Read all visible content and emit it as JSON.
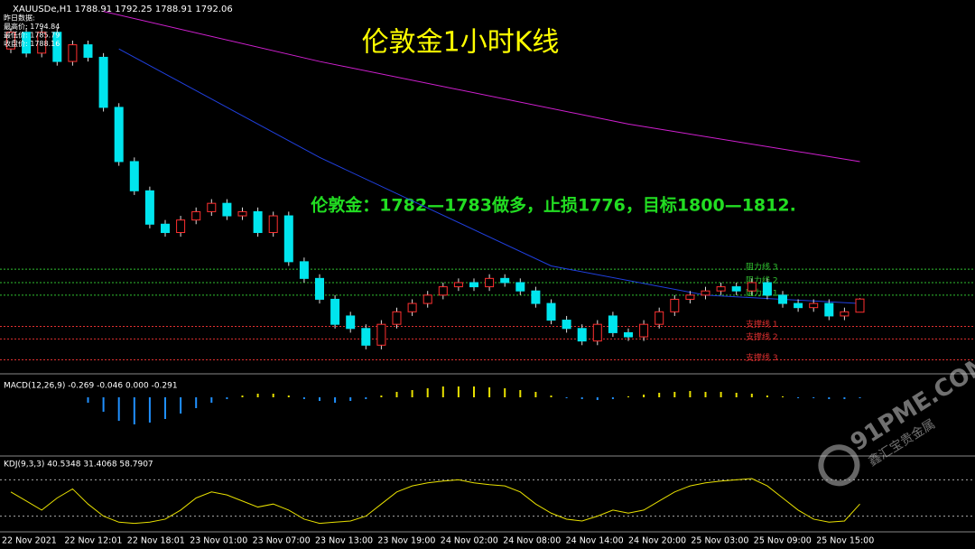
{
  "chart_data": [
    {
      "type": "candlestick",
      "header": "XAUUSDe,H1  1788.91 1792.25 1788.91 1792.06",
      "title": "伦敦金1小时K线",
      "annotation": "伦敦金：1782—1783做多，止损1776，目标1800—1812.",
      "info": [
        "昨日数据:",
        "最高价: 1794.84",
        "最低价: 1785.79",
        "收盘价: 1788.16"
      ],
      "ylim": [
        1775,
        1862
      ],
      "up_color": "#ff3030",
      "down_color": "#00e5ee",
      "open": [
        1852,
        1856,
        1851,
        1856,
        1849,
        1853,
        1850,
        1838,
        1825,
        1818,
        1810,
        1808,
        1811,
        1813,
        1815,
        1812,
        1813,
        1808,
        1812,
        1801,
        1797,
        1792,
        1788,
        1785,
        1781,
        1786,
        1789,
        1791,
        1793,
        1795,
        1796,
        1795,
        1797,
        1796,
        1794,
        1791,
        1787,
        1785,
        1782,
        1788,
        1784,
        1783,
        1786,
        1789,
        1792,
        1793,
        1794,
        1795,
        1794,
        1796,
        1793,
        1791,
        1790,
        1791,
        1788,
        1788.91
      ],
      "high": [
        1857,
        1857,
        1857,
        1857,
        1854,
        1854,
        1851,
        1839,
        1826,
        1819,
        1811,
        1812,
        1814,
        1816,
        1816,
        1814,
        1814,
        1813,
        1813,
        1802,
        1798,
        1793,
        1789,
        1786,
        1787,
        1790,
        1792,
        1794,
        1796,
        1797,
        1797,
        1798,
        1798,
        1797,
        1795,
        1792,
        1788,
        1786,
        1787,
        1789,
        1785,
        1787,
        1790,
        1793,
        1794,
        1795,
        1796,
        1796,
        1797,
        1797,
        1794,
        1792,
        1792,
        1792,
        1790,
        1792.25
      ],
      "low": [
        1851,
        1850,
        1850,
        1848,
        1848,
        1849,
        1837,
        1824,
        1817,
        1809,
        1807,
        1807,
        1810,
        1812,
        1811,
        1811,
        1807,
        1807,
        1800,
        1796,
        1791,
        1785,
        1784,
        1780,
        1780,
        1785,
        1788,
        1790,
        1792,
        1794,
        1794,
        1794,
        1795,
        1793,
        1790,
        1786,
        1784,
        1781,
        1781,
        1783,
        1782,
        1782,
        1785,
        1788,
        1791,
        1792,
        1793,
        1793,
        1793,
        1792,
        1790,
        1789,
        1789,
        1787,
        1787,
        1788.91
      ],
      "close": [
        1856,
        1851,
        1856,
        1849,
        1853,
        1850,
        1838,
        1825,
        1818,
        1810,
        1808,
        1811,
        1813,
        1815,
        1812,
        1813,
        1808,
        1812,
        1801,
        1797,
        1792,
        1786,
        1785,
        1781,
        1786,
        1789,
        1791,
        1793,
        1795,
        1796,
        1795,
        1797,
        1796,
        1794,
        1791,
        1787,
        1785,
        1782,
        1786,
        1784,
        1783,
        1786,
        1789,
        1792,
        1793,
        1794,
        1795,
        1794,
        1796,
        1793,
        1791,
        1790,
        1791,
        1788,
        1789,
        1792.06
      ],
      "lines": [
        {
          "color": "#d020d0",
          "x": [
            6,
            20,
            40,
            55
          ],
          "values": [
            1861,
            1849,
            1834,
            1825
          ]
        },
        {
          "color": "#2040e0",
          "x": [
            7,
            20,
            35,
            45,
            55
          ],
          "values": [
            1852,
            1826,
            1800,
            1793,
            1791
          ]
        }
      ],
      "levels": [
        {
          "label": "阻力线 3",
          "value": 1799.2,
          "color": "#30c030"
        },
        {
          "label": "阻力线 2",
          "value": 1796,
          "color": "#30c030"
        },
        {
          "label": "阻力线 1",
          "value": 1793,
          "color": "#30c030"
        },
        {
          "label": "支撑线 1",
          "value": 1785.5,
          "color": "#e03030"
        },
        {
          "label": "支撑线 2",
          "value": 1782.5,
          "color": "#e03030"
        },
        {
          "label": "支撑线 3",
          "value": 1777.5,
          "color": "#e03030"
        }
      ],
      "x_labels": [
        "22 Nov 2021",
        "22 Nov 12:01",
        "22 Nov 18:01",
        "23 Nov 01:00",
        "23 Nov 07:00",
        "23 Nov 13:00",
        "23 Nov 19:00",
        "24 Nov 02:00",
        "24 Nov 08:00",
        "24 Nov 14:00",
        "24 Nov 20:00",
        "25 Nov 03:00",
        "25 Nov 09:00",
        "25 Nov 15:00"
      ]
    },
    {
      "type": "bar",
      "title": "MACD(12,26,9) -0.269 -0.046 0.000 -0.291",
      "ylim": [
        -3,
        1
      ],
      "up_color": "#e8e000",
      "down_color": "#2090ff",
      "values": [
        0,
        0,
        0,
        0,
        0,
        -0.3,
        -0.8,
        -1.3,
        -1.5,
        -1.4,
        -1.2,
        -0.9,
        -0.6,
        -0.3,
        -0.1,
        0.1,
        0.2,
        0.2,
        0.1,
        -0.1,
        -0.2,
        -0.3,
        -0.2,
        -0.1,
        0.1,
        0.3,
        0.4,
        0.5,
        0.6,
        0.6,
        0.6,
        0.55,
        0.5,
        0.4,
        0.3,
        0.1,
        -0.05,
        -0.1,
        -0.15,
        -0.1,
        0.05,
        0.15,
        0.25,
        0.3,
        0.35,
        0.3,
        0.3,
        0.25,
        0.2,
        0.1,
        0.05,
        -0.05,
        -0.05,
        -0.1,
        -0.1,
        -0.05
      ]
    },
    {
      "type": "line",
      "title": "KDJ(9,3,3) 40.5348 31.4068 58.7907",
      "ylim": [
        0,
        100
      ],
      "color": "#e8e000",
      "levels": [
        20,
        80
      ],
      "values": [
        60,
        45,
        30,
        50,
        65,
        40,
        20,
        10,
        8,
        10,
        15,
        30,
        50,
        60,
        55,
        45,
        35,
        40,
        30,
        15,
        8,
        10,
        12,
        20,
        40,
        60,
        70,
        75,
        78,
        80,
        75,
        72,
        70,
        60,
        40,
        25,
        15,
        12,
        20,
        30,
        25,
        30,
        45,
        60,
        70,
        75,
        78,
        80,
        82,
        70,
        50,
        30,
        15,
        10,
        12,
        40
      ]
    }
  ],
  "watermark": {
    "brand": "91PME.COM",
    "name": "鑫汇宝贵金属"
  }
}
